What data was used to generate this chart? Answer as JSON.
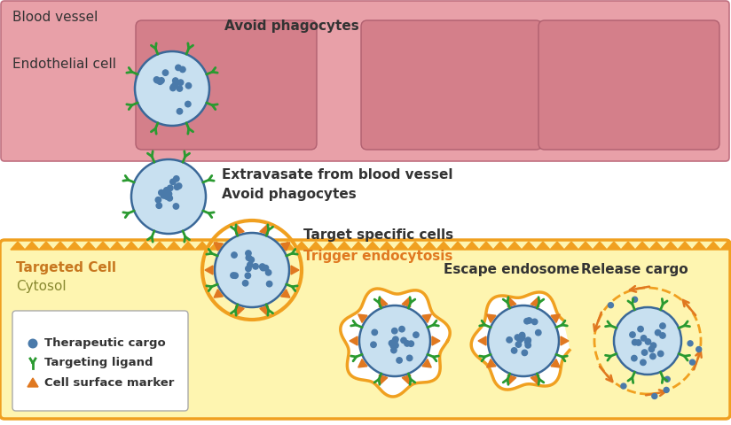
{
  "bg_color": "#ffffff",
  "blood_vessel_color": "#e8a0a8",
  "endothelial_cell_color": "#d47f8a",
  "cytosol_bg_color": "#fef5b0",
  "cytosol_border_color": "#f0a020",
  "virus_border_color": "#3a6898",
  "virus_fill_color": "#c8e0f0",
  "virus_dot_color": "#4a7aaa",
  "ligand_color": "#2a9a30",
  "marker_color": "#e07820",
  "text_dark": "#333333",
  "trigger_color": "#e07820",
  "targeted_label_color": "#c87820",
  "cytosol_label_color": "#888830",
  "labels": {
    "blood_vessel": "Blood vessel",
    "endothelial": "Endothelial cell",
    "avoid1": "Avoid phagocytes",
    "extravasate": "Extravasate from blood vessel",
    "avoid2": "Avoid phagocytes",
    "target": "Target specific cells",
    "trigger": "Trigger endocytosis",
    "escape": "Escape endosome",
    "release": "Release cargo",
    "targeted_cell": "Targeted Cell",
    "cytosol": "Cytosol",
    "legend1": "Therapeutic cargo",
    "legend2": "Targeting ligand",
    "legend3": "Cell surface marker"
  }
}
